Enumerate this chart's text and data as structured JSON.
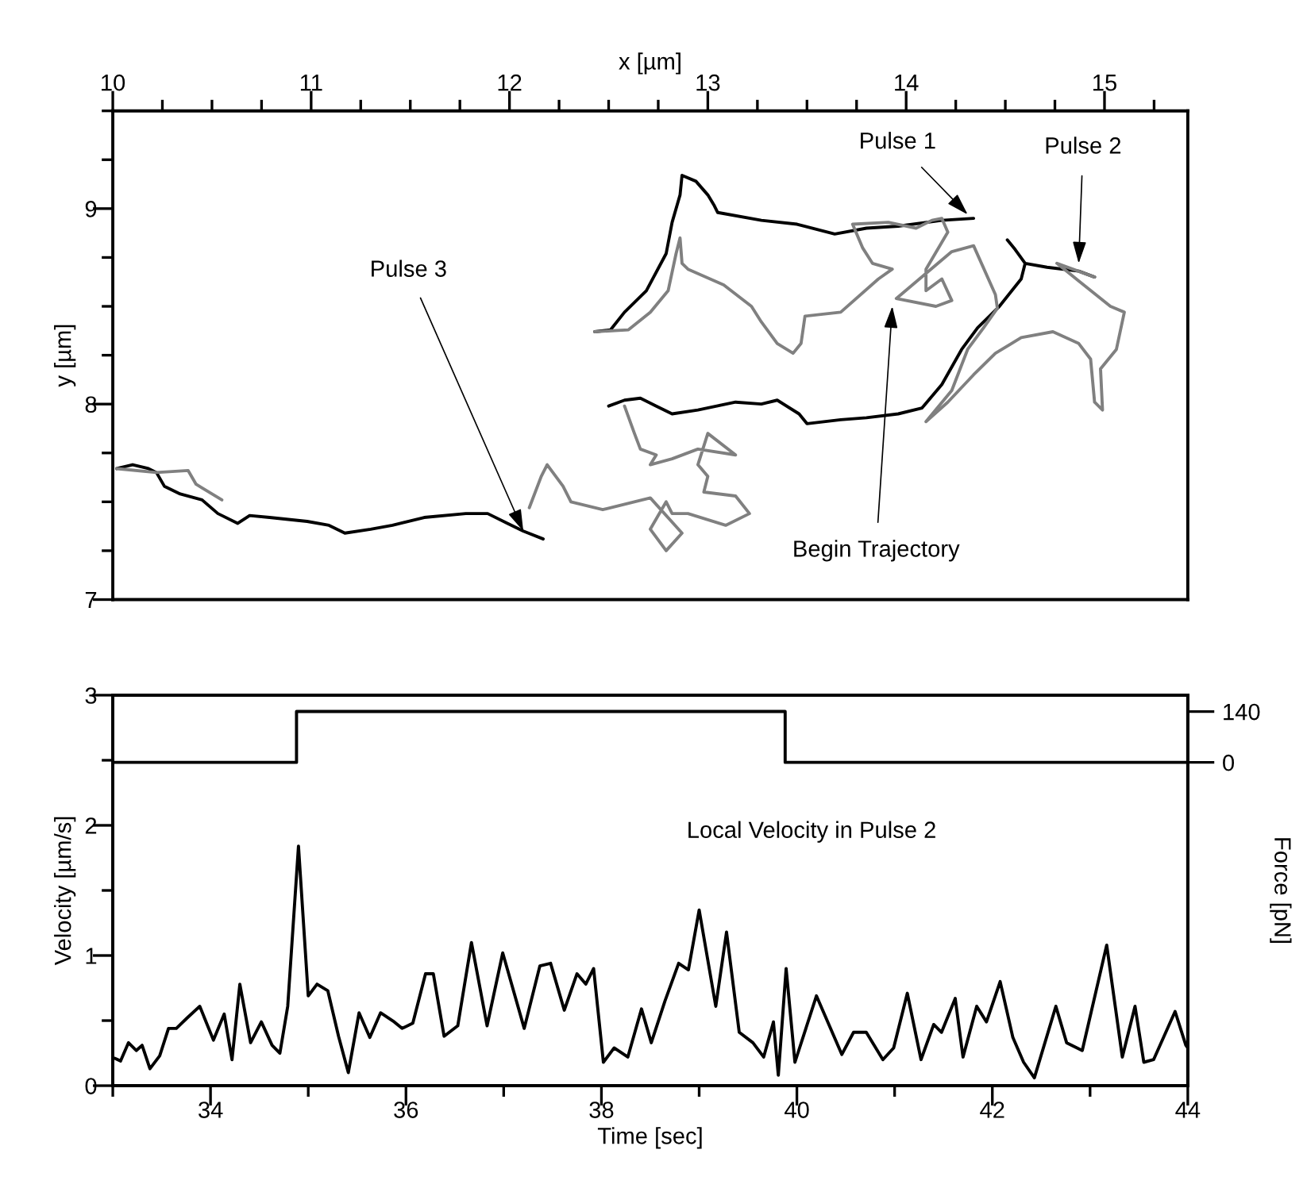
{
  "chart_data": [
    {
      "type": "line",
      "xlabel": "x [µm]",
      "ylabel": "y [µm]",
      "xlim": [
        10,
        15.42
      ],
      "ylim": [
        7,
        9.5
      ],
      "xticks": [
        10,
        {
          "value": 10.25,
          "label": null
        },
        {
          "value": 10.5,
          "label": null
        },
        {
          "value": 10.75,
          "label": null
        },
        11,
        {
          "value": 11.25,
          "label": null
        },
        {
          "value": 11.5,
          "label": null
        },
        {
          "value": 11.75,
          "label": null
        },
        12,
        {
          "value": 12.25,
          "label": null
        },
        {
          "value": 12.5,
          "label": null
        },
        {
          "value": 12.75,
          "label": null
        },
        13,
        {
          "value": 13.25,
          "label": null
        },
        {
          "value": 13.5,
          "label": null
        },
        {
          "value": 13.75,
          "label": null
        },
        14,
        {
          "value": 14.25,
          "label": null
        },
        {
          "value": 14.5,
          "label": null
        },
        {
          "value": 14.75,
          "label": null
        },
        15,
        {
          "value": 15.25,
          "label": null
        }
      ],
      "yticks": [
        7,
        {
          "value": 7.25,
          "label": null
        },
        {
          "value": 7.5,
          "label": null
        },
        {
          "value": 7.75,
          "label": null
        },
        8,
        {
          "value": 8.25,
          "label": null
        },
        {
          "value": 8.5,
          "label": null
        },
        {
          "value": 8.75,
          "label": null
        },
        9,
        {
          "value": 9.25,
          "label": null
        },
        {
          "value": 9.5,
          "label": null
        }
      ],
      "series": [
        {
          "color": "#000000",
          "x": [
            10.02,
            10.1,
            10.18,
            10.22,
            10.26,
            10.34,
            10.45,
            10.53,
            10.63,
            10.69,
            10.79,
            10.98,
            11.09,
            11.17,
            11.3,
            11.41,
            11.57,
            11.78,
            11.89,
            11.99,
            12.07,
            12.17,
            null,
            12.43,
            12.51,
            12.58,
            12.69,
            12.79,
            12.82,
            12.86,
            12.87,
            12.94,
            13.0,
            13.03,
            13.05,
            13.27,
            13.45,
            13.64,
            13.8,
            13.96,
            14.18,
            14.34,
            null,
            12.5,
            12.58,
            12.66,
            12.74,
            12.82,
            12.95,
            13.14,
            13.27,
            13.35,
            13.46,
            13.5,
            13.67,
            13.8,
            13.96,
            14.08,
            14.18,
            14.28,
            14.36,
            14.47,
            14.58,
            14.6,
            14.55,
            14.51,
            null,
            14.6,
            14.71,
            14.87,
            14.95
          ],
          "values": [
            7.67,
            7.69,
            7.67,
            7.65,
            7.58,
            7.54,
            7.51,
            7.44,
            7.39,
            7.43,
            7.42,
            7.4,
            7.38,
            7.34,
            7.36,
            7.38,
            7.42,
            7.44,
            7.44,
            7.39,
            7.35,
            7.31,
            null,
            8.37,
            8.38,
            8.47,
            8.58,
            8.77,
            8.93,
            9.07,
            9.17,
            9.14,
            9.07,
            9.02,
            8.98,
            8.94,
            8.92,
            8.87,
            8.9,
            8.91,
            8.94,
            8.95,
            null,
            7.99,
            8.02,
            8.03,
            7.99,
            7.95,
            7.97,
            8.01,
            8.0,
            8.02,
            7.95,
            7.9,
            7.92,
            7.93,
            7.95,
            7.98,
            8.1,
            8.28,
            8.39,
            8.5,
            8.64,
            8.72,
            8.79,
            8.84,
            null,
            8.72,
            8.7,
            8.68,
            8.65
          ]
        },
        {
          "color": "#808080",
          "x": [
            10.02,
            10.22,
            10.38,
            10.42,
            10.55,
            null,
            12.43,
            12.6,
            12.71,
            12.8,
            12.84,
            12.86,
            12.87,
            12.9,
            13.08,
            13.22,
            13.27,
            13.35,
            13.43,
            13.47,
            13.49,
            13.67,
            13.86,
            13.93,
            13.83,
            13.78,
            13.73,
            13.91,
            14.05,
            14.13,
            14.18,
            14.21,
            14.1,
            14.1,
            14.18,
            14.23,
            14.15,
            13.95,
            14.23,
            14.34,
            14.45,
            14.46,
            14.39,
            14.31,
            14.23,
            14.1,
            14.21,
            14.34,
            14.45,
            14.58,
            14.74,
            14.87,
            14.93,
            14.95,
            14.99,
            14.98,
            15.06,
            15.1,
            15.03,
            14.87,
            14.76,
            14.95,
            null,
            12.58,
            12.63,
            12.66,
            12.74,
            12.71,
            12.82,
            12.95,
            13.14,
            13.0,
            12.95,
            13.0,
            12.98,
            13.14,
            13.21,
            13.09,
            12.9,
            12.82,
            12.79,
            12.71,
            12.79,
            12.87,
            12.71,
            12.47,
            12.31,
            12.27,
            12.19,
            12.16,
            12.1
          ],
          "values": [
            7.67,
            7.65,
            7.66,
            7.59,
            7.51,
            null,
            8.37,
            8.38,
            8.47,
            8.58,
            8.77,
            8.85,
            8.72,
            8.69,
            8.61,
            8.5,
            8.42,
            8.31,
            8.26,
            8.31,
            8.45,
            8.47,
            8.64,
            8.69,
            8.72,
            8.8,
            8.92,
            8.93,
            8.9,
            8.94,
            8.95,
            8.88,
            8.69,
            8.58,
            8.64,
            8.53,
            8.5,
            8.54,
            8.78,
            8.81,
            8.56,
            8.49,
            8.39,
            8.28,
            8.07,
            7.91,
            8.01,
            8.15,
            8.26,
            8.34,
            8.37,
            8.31,
            8.23,
            8.01,
            7.97,
            8.18,
            8.28,
            8.47,
            8.5,
            8.63,
            8.72,
            8.65,
            null,
            7.99,
            7.85,
            7.77,
            7.74,
            7.69,
            7.72,
            7.77,
            7.74,
            7.85,
            7.69,
            7.63,
            7.55,
            7.53,
            7.44,
            7.38,
            7.44,
            7.44,
            7.5,
            7.36,
            7.25,
            7.34,
            7.52,
            7.46,
            7.5,
            7.58,
            7.69,
            7.63,
            7.47
          ]
        }
      ],
      "annotations": [
        {
          "text": "Pulse 3",
          "x": 12.07,
          "y": 7.35
        },
        {
          "text": "Pulse 1",
          "x": 14.31,
          "y": 8.97
        },
        {
          "text": "Pulse 2",
          "x": 14.87,
          "y": 8.72
        },
        {
          "text": "Begin Trajectory",
          "x": 13.93,
          "y": 8.5
        }
      ]
    },
    {
      "type": "line",
      "xlabel": "Time [sec]",
      "ylabel": "Velocity [µm/s]",
      "y2label": "Force [pN]",
      "xlim": [
        33,
        44
      ],
      "ylim": [
        0,
        3
      ],
      "y2lim": [
        -890,
        185
      ],
      "xticks": [
        {
          "value": 33,
          "label": null
        },
        34,
        {
          "value": 35,
          "label": null
        },
        36,
        {
          "value": 37,
          "label": null
        },
        38,
        {
          "value": 39,
          "label": null
        },
        40,
        {
          "value": 41,
          "label": null
        },
        42,
        {
          "value": 43,
          "label": null
        },
        44
      ],
      "yticks": [
        0,
        {
          "value": 0.5,
          "label": null
        },
        1,
        {
          "value": 1.5,
          "label": null
        },
        2,
        {
          "value": 2.5,
          "label": null
        },
        3
      ],
      "y2ticks": [
        0,
        140
      ],
      "series": [
        {
          "color": "#000000",
          "x": [
            33.02,
            33.08,
            33.16,
            33.24,
            33.3,
            33.38,
            33.48,
            33.57,
            33.65,
            33.76,
            33.89,
            34.03,
            34.14,
            34.22,
            34.3,
            34.41,
            34.52,
            34.63,
            34.71,
            34.79,
            34.9,
            35.0,
            35.09,
            35.2,
            35.31,
            35.41,
            35.52,
            35.63,
            35.74,
            35.88,
            35.96,
            36.07,
            36.2,
            36.28,
            36.39,
            36.53,
            36.67,
            36.83,
            36.99,
            37.21,
            37.37,
            37.48,
            37.62,
            37.75,
            37.84,
            37.92,
            38.02,
            38.13,
            38.27,
            38.41,
            38.51,
            38.65,
            38.79,
            38.89,
            39.0,
            39.17,
            39.28,
            39.41,
            39.55,
            39.66,
            39.76,
            39.81,
            39.89,
            39.98,
            40.2,
            40.46,
            40.58,
            40.71,
            40.88,
            40.99,
            41.13,
            41.27,
            41.4,
            41.48,
            41.62,
            41.7,
            41.84,
            41.94,
            42.08,
            42.21,
            42.32,
            42.43,
            42.65,
            42.76,
            42.92,
            43.17,
            43.33,
            43.46,
            43.55,
            43.65,
            43.87,
            43.98,
            44.0
          ],
          "values": [
            0.21,
            0.19,
            0.33,
            0.27,
            0.31,
            0.13,
            0.23,
            0.44,
            0.44,
            0.52,
            0.61,
            0.35,
            0.55,
            0.2,
            0.78,
            0.33,
            0.49,
            0.31,
            0.25,
            0.61,
            1.84,
            0.69,
            0.78,
            0.73,
            0.38,
            0.1,
            0.56,
            0.37,
            0.56,
            0.49,
            0.44,
            0.48,
            0.86,
            0.86,
            0.38,
            0.46,
            1.1,
            0.46,
            1.02,
            0.44,
            0.92,
            0.94,
            0.58,
            0.86,
            0.78,
            0.9,
            0.18,
            0.29,
            0.22,
            0.59,
            0.33,
            0.65,
            0.94,
            0.89,
            1.35,
            0.61,
            1.18,
            0.41,
            0.33,
            0.22,
            0.49,
            0.08,
            0.9,
            0.18,
            0.69,
            0.24,
            0.41,
            0.41,
            0.2,
            0.29,
            0.71,
            0.2,
            0.47,
            0.41,
            0.67,
            0.22,
            0.61,
            0.49,
            0.8,
            0.37,
            0.18,
            0.06,
            0.61,
            0.33,
            0.27,
            1.08,
            0.22,
            0.61,
            0.18,
            0.2,
            0.57,
            0.31,
            0.29
          ]
        },
        {
          "color": "#000000",
          "axis": "y2",
          "x": [
            33,
            34.88,
            34.88,
            39.88,
            39.88,
            44
          ],
          "values": [
            0,
            0,
            140,
            140,
            0,
            0
          ]
        }
      ],
      "annotations": [
        "Local Velocity in Pulse 2"
      ]
    }
  ]
}
